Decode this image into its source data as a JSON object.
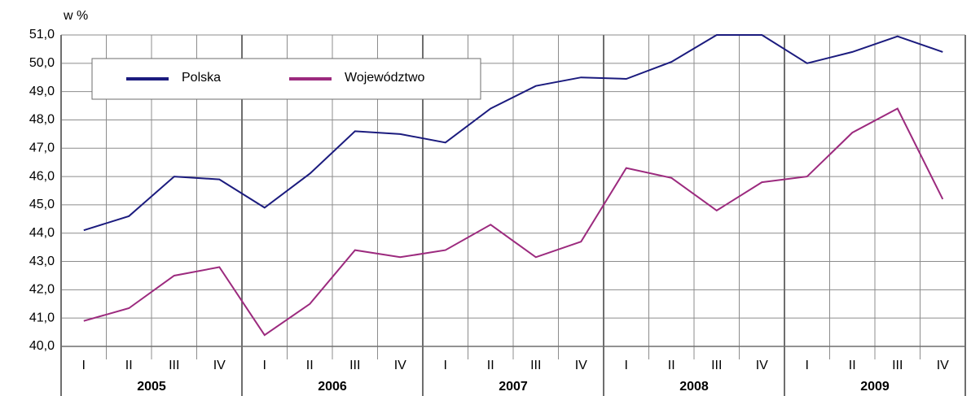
{
  "chart_data": {
    "type": "line",
    "y_axis_label": "w %",
    "categories": [
      "I",
      "II",
      "III",
      "IV",
      "I",
      "II",
      "III",
      "IV",
      "I",
      "II",
      "III",
      "IV",
      "I",
      "II",
      "III",
      "IV",
      "I",
      "II",
      "III",
      "IV"
    ],
    "groups": [
      "2005",
      "2006",
      "2007",
      "2008",
      "2009"
    ],
    "series": [
      {
        "name": "Polska",
        "color": "#1b1b7e",
        "values": [
          44.1,
          44.6,
          46.0,
          45.9,
          44.9,
          46.1,
          47.6,
          47.5,
          47.2,
          48.4,
          49.2,
          49.5,
          49.45,
          50.05,
          51.0,
          51.0,
          50.0,
          50.4,
          50.95,
          50.4
        ]
      },
      {
        "name": "Województwo",
        "color": "#9c2a7e",
        "values": [
          40.9,
          41.35,
          42.5,
          42.8,
          40.4,
          41.5,
          43.4,
          43.15,
          43.4,
          44.3,
          43.15,
          43.7,
          46.3,
          45.95,
          44.8,
          45.8,
          46.0,
          47.55,
          48.4,
          45.2
        ]
      }
    ],
    "ylim": [
      40,
      51
    ],
    "yticks": [
      {
        "value": 40,
        "label": "40,0"
      },
      {
        "value": 41,
        "label": "41,0"
      },
      {
        "value": 42,
        "label": "42,0"
      },
      {
        "value": 43,
        "label": "43,0"
      },
      {
        "value": 44,
        "label": "44,0"
      },
      {
        "value": 45,
        "label": "45,0"
      },
      {
        "value": 46,
        "label": "46,0"
      },
      {
        "value": 47,
        "label": "47,0"
      },
      {
        "value": 48,
        "label": "48,0"
      },
      {
        "value": 49,
        "label": "49,0"
      },
      {
        "value": 50,
        "label": "50,0"
      },
      {
        "value": 51,
        "label": "51,0"
      }
    ],
    "grid": true
  }
}
